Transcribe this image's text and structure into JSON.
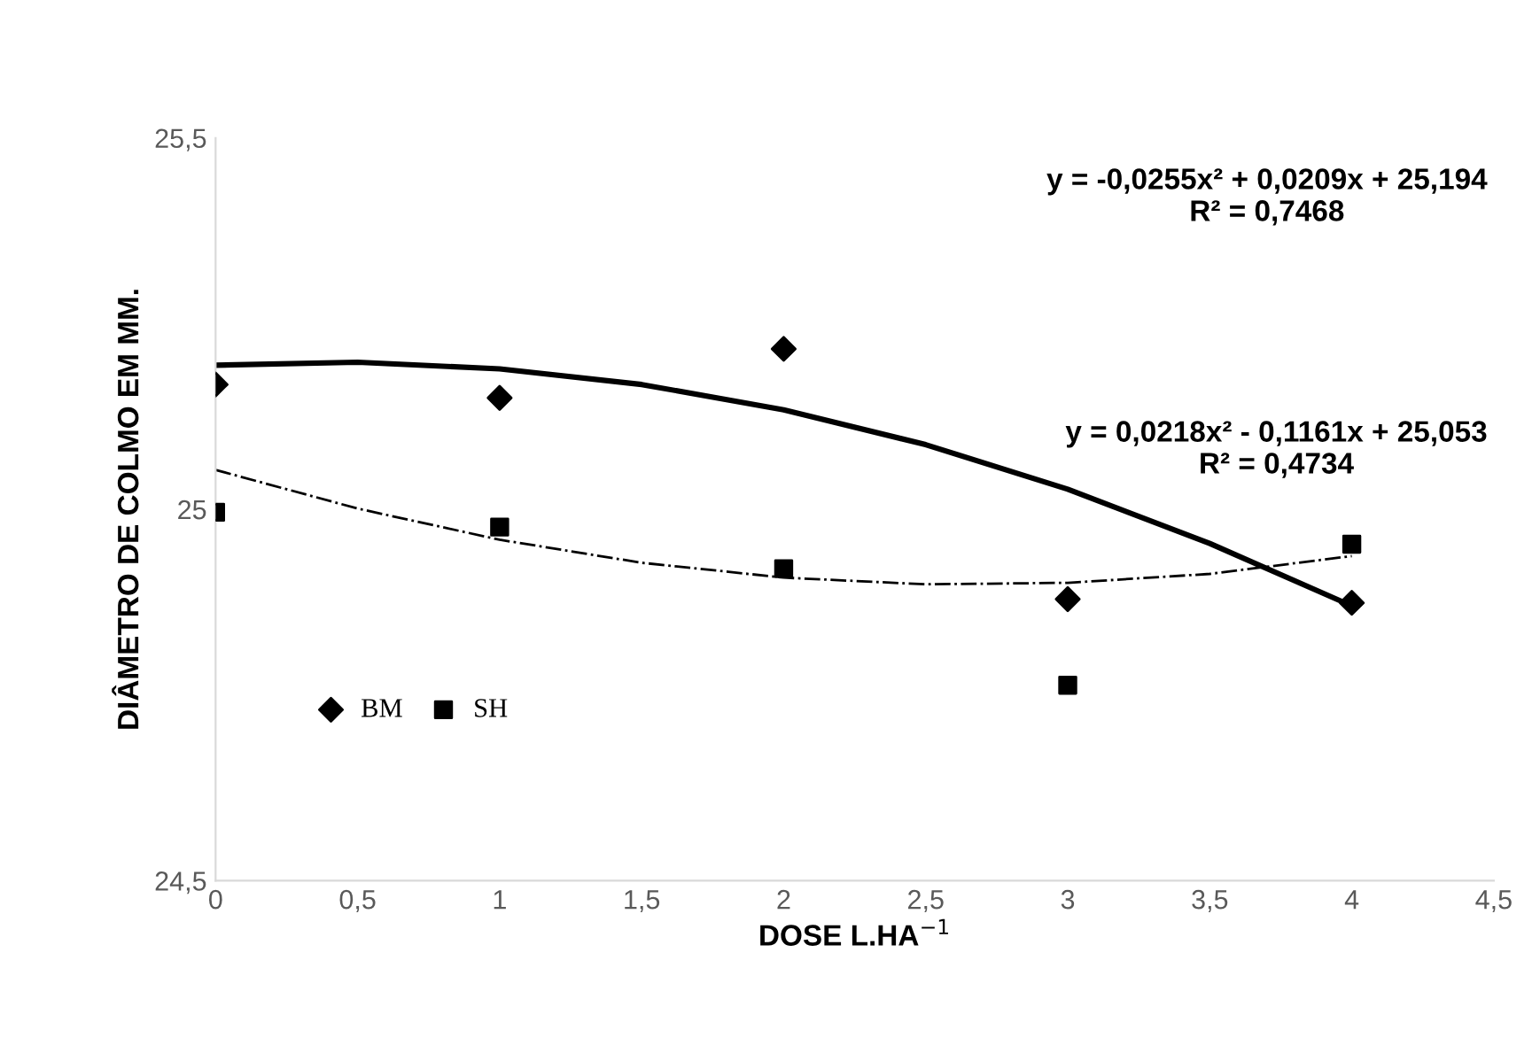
{
  "chart_data": {
    "type": "scatter",
    "xlabel": "DOSE L.HA$^{−1}$",
    "ylabel": "DIÂMETRO DE COLMO EM MM.",
    "xlim": [
      0,
      4.5
    ],
    "ylim": [
      24.5,
      25.5
    ],
    "xticks": [
      0,
      {
        "value": 0.5,
        "label": "0,5"
      },
      1,
      {
        "value": 1.5,
        "label": "1,5"
      },
      2,
      {
        "value": 2.5,
        "label": "2,5"
      },
      3,
      {
        "value": 3.5,
        "label": "3,5"
      },
      4,
      {
        "value": 4.5,
        "label": "4,5"
      }
    ],
    "yticks": [
      {
        "value": 24.5,
        "label": "24,5"
      },
      25,
      {
        "value": 25.5,
        "label": "25,5"
      }
    ],
    "grid": false,
    "legend": "lower left",
    "series": [
      {
        "name": "BM",
        "color": "#000000",
        "marker": "diamond",
        "x": [
          0,
          1,
          2,
          3,
          4
        ],
        "values": [
          25.168,
          25.15,
          25.216,
          24.879,
          24.874
        ]
      },
      {
        "name": "SH",
        "color": "#000000",
        "marker": "square",
        "x": [
          0,
          1,
          2,
          3,
          4
        ],
        "values": [
          24.996,
          24.976,
          24.92,
          24.763,
          24.953
        ]
      },
      {
        "type": "line",
        "color": "#000000",
        "line_style": "solid",
        "marker": "none",
        "x": [
          0,
          0.5,
          1,
          1.5,
          2,
          2.5,
          3,
          3.5,
          4
        ],
        "values": [
          25.194,
          25.198,
          25.189,
          25.168,
          25.134,
          25.087,
          25.027,
          24.954,
          24.87
        ]
      },
      {
        "type": "line",
        "color": "#000000",
        "line_style": "dashdot",
        "marker": "none",
        "x": [
          0,
          0.5,
          1,
          1.5,
          2,
          2.5,
          3,
          3.5,
          4
        ],
        "values": [
          25.053,
          25.001,
          24.959,
          24.928,
          24.908,
          24.899,
          24.901,
          24.913,
          24.937
        ]
      }
    ],
    "annotations": [
      "y = -0,0255x² + 0,0209x + 25,194\nR² = 0,7468",
      "y = 0,0218x² - 0,1161x + 25,053\nR² = 0,4734"
    ]
  }
}
